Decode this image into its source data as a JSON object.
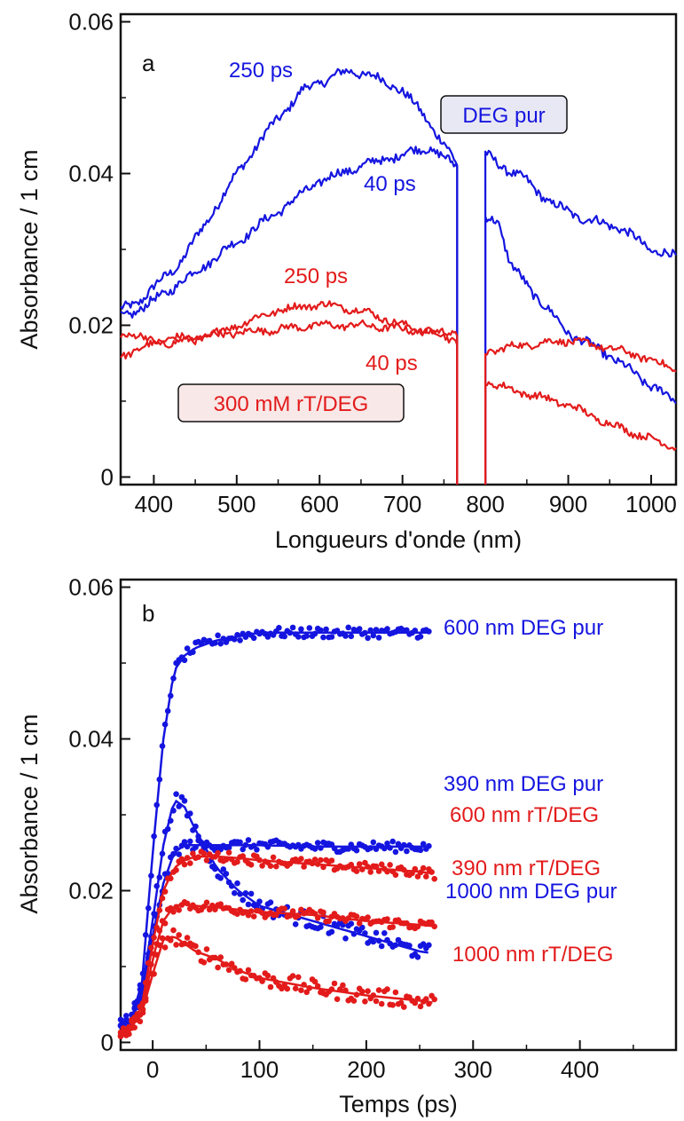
{
  "chart_data": [
    {
      "type": "line",
      "panel": "a",
      "xlabel": "Longueurs d'onde (nm)",
      "ylabel": "Absorbance / 1 cm",
      "xlim": [
        360,
        1030
      ],
      "ylim": [
        -0.001,
        0.061
      ],
      "xticks": [
        400,
        500,
        600,
        700,
        800,
        900,
        1000
      ],
      "yticks": [
        0,
        0.02,
        0.04,
        0.06
      ],
      "ytick_labels": [
        "0",
        "0.02",
        "0.04",
        "0.06"
      ],
      "gap": [
        768,
        798
      ],
      "colors": {
        "deg": "#1515e0",
        "rt": "#e31b1b"
      },
      "annotations": {
        "blue_250": "250 ps",
        "blue_40": "40 ps",
        "red_250": "250 ps",
        "red_40": "40 ps",
        "box_deg": "DEG pur",
        "box_rt": "300 mM rT/DEG"
      },
      "series": [
        {
          "color": "blue",
          "delay": "250 ps",
          "x": [
            360,
            380,
            400,
            430,
            460,
            500,
            540,
            580,
            620,
            640,
            660,
            700,
            730,
            750,
            766,
            800,
            820,
            850,
            880,
            920,
            960,
            1000,
            1030
          ],
          "y": [
            0.022,
            0.023,
            0.025,
            0.028,
            0.033,
            0.04,
            0.046,
            0.051,
            0.053,
            0.0535,
            0.053,
            0.051,
            0.047,
            0.044,
            0.041,
            0.0425,
            0.041,
            0.039,
            0.036,
            0.034,
            0.033,
            0.03,
            0.029
          ]
        },
        {
          "color": "blue",
          "delay": "40 ps",
          "x": [
            360,
            390,
            410,
            450,
            500,
            550,
            600,
            650,
            700,
            730,
            750,
            766,
            800,
            815,
            830,
            860,
            900,
            950,
            1000,
            1030
          ],
          "y": [
            0.021,
            0.0225,
            0.024,
            0.027,
            0.031,
            0.035,
            0.039,
            0.041,
            0.0425,
            0.0435,
            0.042,
            0.041,
            0.034,
            0.034,
            0.028,
            0.024,
            0.019,
            0.016,
            0.012,
            0.01
          ]
        },
        {
          "color": "red",
          "delay": "250 ps",
          "x": [
            360,
            400,
            450,
            500,
            550,
            600,
            650,
            700,
            740,
            766,
            800,
            850,
            900,
            950,
            1000,
            1030
          ],
          "y": [
            0.016,
            0.0175,
            0.018,
            0.02,
            0.022,
            0.0228,
            0.022,
            0.02,
            0.019,
            0.019,
            0.0165,
            0.0175,
            0.018,
            0.017,
            0.0155,
            0.014
          ]
        },
        {
          "color": "red",
          "delay": "40 ps",
          "x": [
            360,
            400,
            450,
            500,
            550,
            600,
            650,
            700,
            740,
            766,
            800,
            850,
            900,
            950,
            1000,
            1030
          ],
          "y": [
            0.019,
            0.018,
            0.0185,
            0.019,
            0.0195,
            0.02,
            0.02,
            0.0195,
            0.019,
            0.018,
            0.0125,
            0.011,
            0.0095,
            0.007,
            0.005,
            0.004
          ]
        }
      ]
    },
    {
      "type": "scatter",
      "panel": "b",
      "xlabel": "Temps (ps)",
      "ylabel": "Absorbance / 1 cm",
      "xlim": [
        -30,
        490
      ],
      "ylim": [
        -0.001,
        0.061
      ],
      "xticks": [
        0,
        100,
        200,
        300,
        400
      ],
      "yticks": [
        0,
        0.02,
        0.04,
        0.06
      ],
      "ytick_labels": [
        "0",
        "0.02",
        "0.04",
        "0.06"
      ],
      "colors": {
        "deg": "#1515e0",
        "rt": "#e31b1b"
      },
      "series": [
        {
          "name": "600 nm DEG pur",
          "color": "blue",
          "x": [
            -30,
            -20,
            -10,
            0,
            10,
            20,
            30,
            40,
            60,
            80,
            100,
            150,
            200,
            250,
            260
          ],
          "y": [
            0.002,
            0.003,
            0.008,
            0.025,
            0.04,
            0.049,
            0.051,
            0.052,
            0.053,
            0.0535,
            0.054,
            0.054,
            0.054,
            0.054,
            0.054
          ]
        },
        {
          "name": "390 nm DEG pur",
          "color": "blue",
          "x": [
            -30,
            -20,
            -10,
            0,
            10,
            20,
            30,
            40,
            60,
            80,
            100,
            150,
            200,
            250,
            260
          ],
          "y": [
            0.002,
            0.003,
            0.006,
            0.014,
            0.021,
            0.025,
            0.026,
            0.026,
            0.026,
            0.026,
            0.026,
            0.0258,
            0.0258,
            0.0258,
            0.0258
          ]
        },
        {
          "name": "1000 nm DEG pur",
          "color": "blue",
          "x": [
            -30,
            -20,
            -10,
            0,
            10,
            20,
            30,
            40,
            60,
            80,
            100,
            150,
            200,
            250,
            260
          ],
          "y": [
            0.002,
            0.003,
            0.007,
            0.016,
            0.026,
            0.032,
            0.031,
            0.028,
            0.023,
            0.02,
            0.018,
            0.016,
            0.014,
            0.012,
            0.0118
          ]
        },
        {
          "name": "600 nm rT/DEG",
          "color": "red",
          "x": [
            -30,
            -20,
            -10,
            0,
            10,
            20,
            30,
            40,
            60,
            80,
            100,
            150,
            200,
            250,
            265
          ],
          "y": [
            0.001,
            0.002,
            0.005,
            0.013,
            0.02,
            0.023,
            0.024,
            0.0245,
            0.0245,
            0.0243,
            0.024,
            0.0235,
            0.023,
            0.0225,
            0.0222
          ]
        },
        {
          "name": "390 nm rT/DEG",
          "color": "red",
          "x": [
            -30,
            -20,
            -10,
            0,
            10,
            20,
            30,
            40,
            60,
            80,
            100,
            150,
            200,
            250,
            265
          ],
          "y": [
            0.001,
            0.002,
            0.004,
            0.011,
            0.016,
            0.018,
            0.0182,
            0.018,
            0.0178,
            0.0175,
            0.0172,
            0.0168,
            0.016,
            0.0155,
            0.0153
          ]
        },
        {
          "name": "1000 nm rT/DEG",
          "color": "red",
          "x": [
            -30,
            -20,
            -10,
            0,
            10,
            20,
            30,
            40,
            60,
            80,
            100,
            150,
            200,
            250,
            265
          ],
          "y": [
            0.001,
            0.002,
            0.004,
            0.009,
            0.0135,
            0.014,
            0.013,
            0.012,
            0.011,
            0.0095,
            0.0085,
            0.0072,
            0.0062,
            0.0055,
            0.0052
          ]
        }
      ]
    }
  ]
}
